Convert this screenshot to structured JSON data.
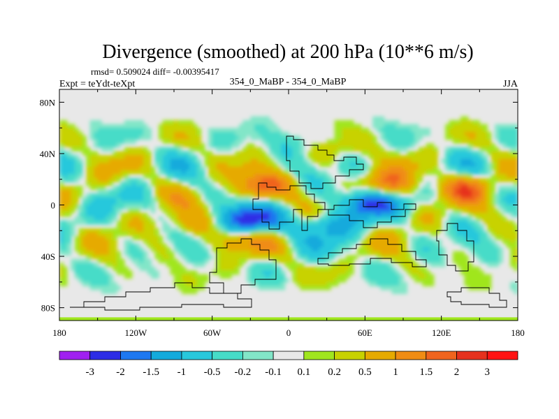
{
  "chart_data": {
    "type": "heatmap",
    "title": "Divergence (smoothed) at 200 hPa (10**6 m/s)",
    "stats_line": "rmsd= 0.509024 diff= -0.00395417",
    "left_label": "Expt = teYdt-teXpt",
    "center_label": "354_0_MaBP - 354_0_MaBP",
    "right_label": "JJA",
    "x_ticks": [
      "180",
      "120W",
      "60W",
      "0",
      "60E",
      "120E",
      "180"
    ],
    "x_tick_values": [
      -180,
      -120,
      -60,
      0,
      60,
      120,
      180
    ],
    "y_ticks": [
      "80N",
      "40N",
      "0",
      "40S",
      "80S"
    ],
    "y_tick_values": [
      80,
      40,
      0,
      -40,
      -80
    ],
    "xlim": [
      -180,
      180
    ],
    "ylim": [
      -90,
      90
    ],
    "colorbar": {
      "labels": [
        "-3",
        "-2",
        "-1.5",
        "-1",
        "-0.5",
        "-0.2",
        "-0.1",
        "0.1",
        "0.2",
        "0.5",
        "1",
        "1.5",
        "2",
        "3"
      ],
      "colors": [
        "#a020f0",
        "#2d2de6",
        "#1e78f0",
        "#14aadc",
        "#28c8dc",
        "#46dcc8",
        "#82e6c8",
        "#e8e8e8",
        "#a0e61e",
        "#c8d200",
        "#e6aa00",
        "#f08c14",
        "#f0641e",
        "#e6321e",
        "#ff1414"
      ]
    },
    "field_features": [
      {
        "lon": -33,
        "lat": -12,
        "value": -2.5
      },
      {
        "lon": 62,
        "lat": 2,
        "value": -2.2
      },
      {
        "lon": -22,
        "lat": 14,
        "value": 1.6
      },
      {
        "lon": 80,
        "lat": 15,
        "value": 1.4
      },
      {
        "lon": 140,
        "lat": 14,
        "value": 1.3
      },
      {
        "lon": -40,
        "lat": -28,
        "value": 1.0
      },
      {
        "lon": 30,
        "lat": -15,
        "value": -1.3
      },
      {
        "lon": -80,
        "lat": -15,
        "value": 0.8
      },
      {
        "lon": 35,
        "lat": 45,
        "value": 0.7
      },
      {
        "lon": 5,
        "lat": 50,
        "value": -0.8
      }
    ]
  }
}
